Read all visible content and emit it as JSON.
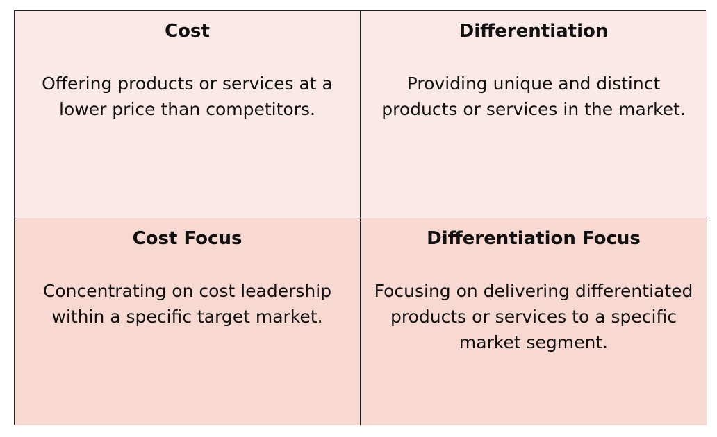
{
  "quadrants": [
    {
      "title": "Cost",
      "description": "Offering products or services at a lower price than competitors.",
      "background": "#fbe9e7"
    },
    {
      "title": "Differentiation",
      "description": "Providing unique and distinct products or services in the market.",
      "background": "#fbe9e7"
    },
    {
      "title": "Cost Focus",
      "description": "Concentrating on cost leadership within a specific target market.",
      "background": "#f7d9d1"
    },
    {
      "title": "Differentiation Focus",
      "description": "Focusing on delivering differentiated products or services to a specific market segment.",
      "background": "#f7d9d1"
    }
  ]
}
